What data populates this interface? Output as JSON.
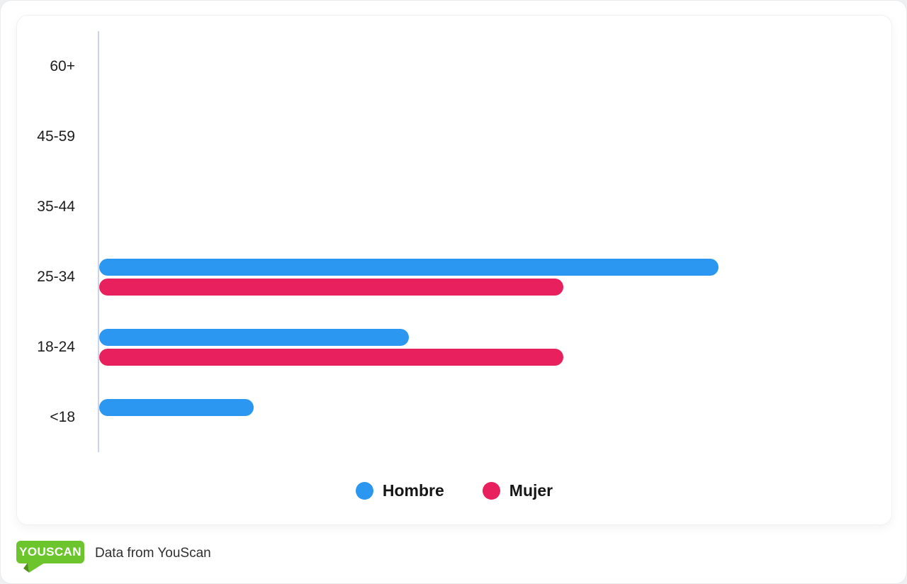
{
  "chart_data": {
    "type": "bar",
    "orientation": "horizontal",
    "title": "",
    "categories": [
      "60+",
      "45-59",
      "35-44",
      "25-34",
      "18-24",
      "<18"
    ],
    "series": [
      {
        "name": "Hombre",
        "color": "#2b97f0",
        "values": [
          0,
          0,
          0,
          4,
          2,
          1
        ]
      },
      {
        "name": "Mujer",
        "color": "#e8205e",
        "values": [
          0,
          0,
          0,
          3,
          3,
          0
        ]
      }
    ],
    "xlim": [
      0,
      5
    ],
    "grid": false,
    "legend_position": "bottom",
    "axis_color": "#cbd4e4"
  },
  "footer": {
    "logo_text": "YOUSCAN",
    "logo_color": "#6cc52d",
    "logo_tail_dark": "#4f8f1f",
    "attribution": "Data from YouScan"
  }
}
